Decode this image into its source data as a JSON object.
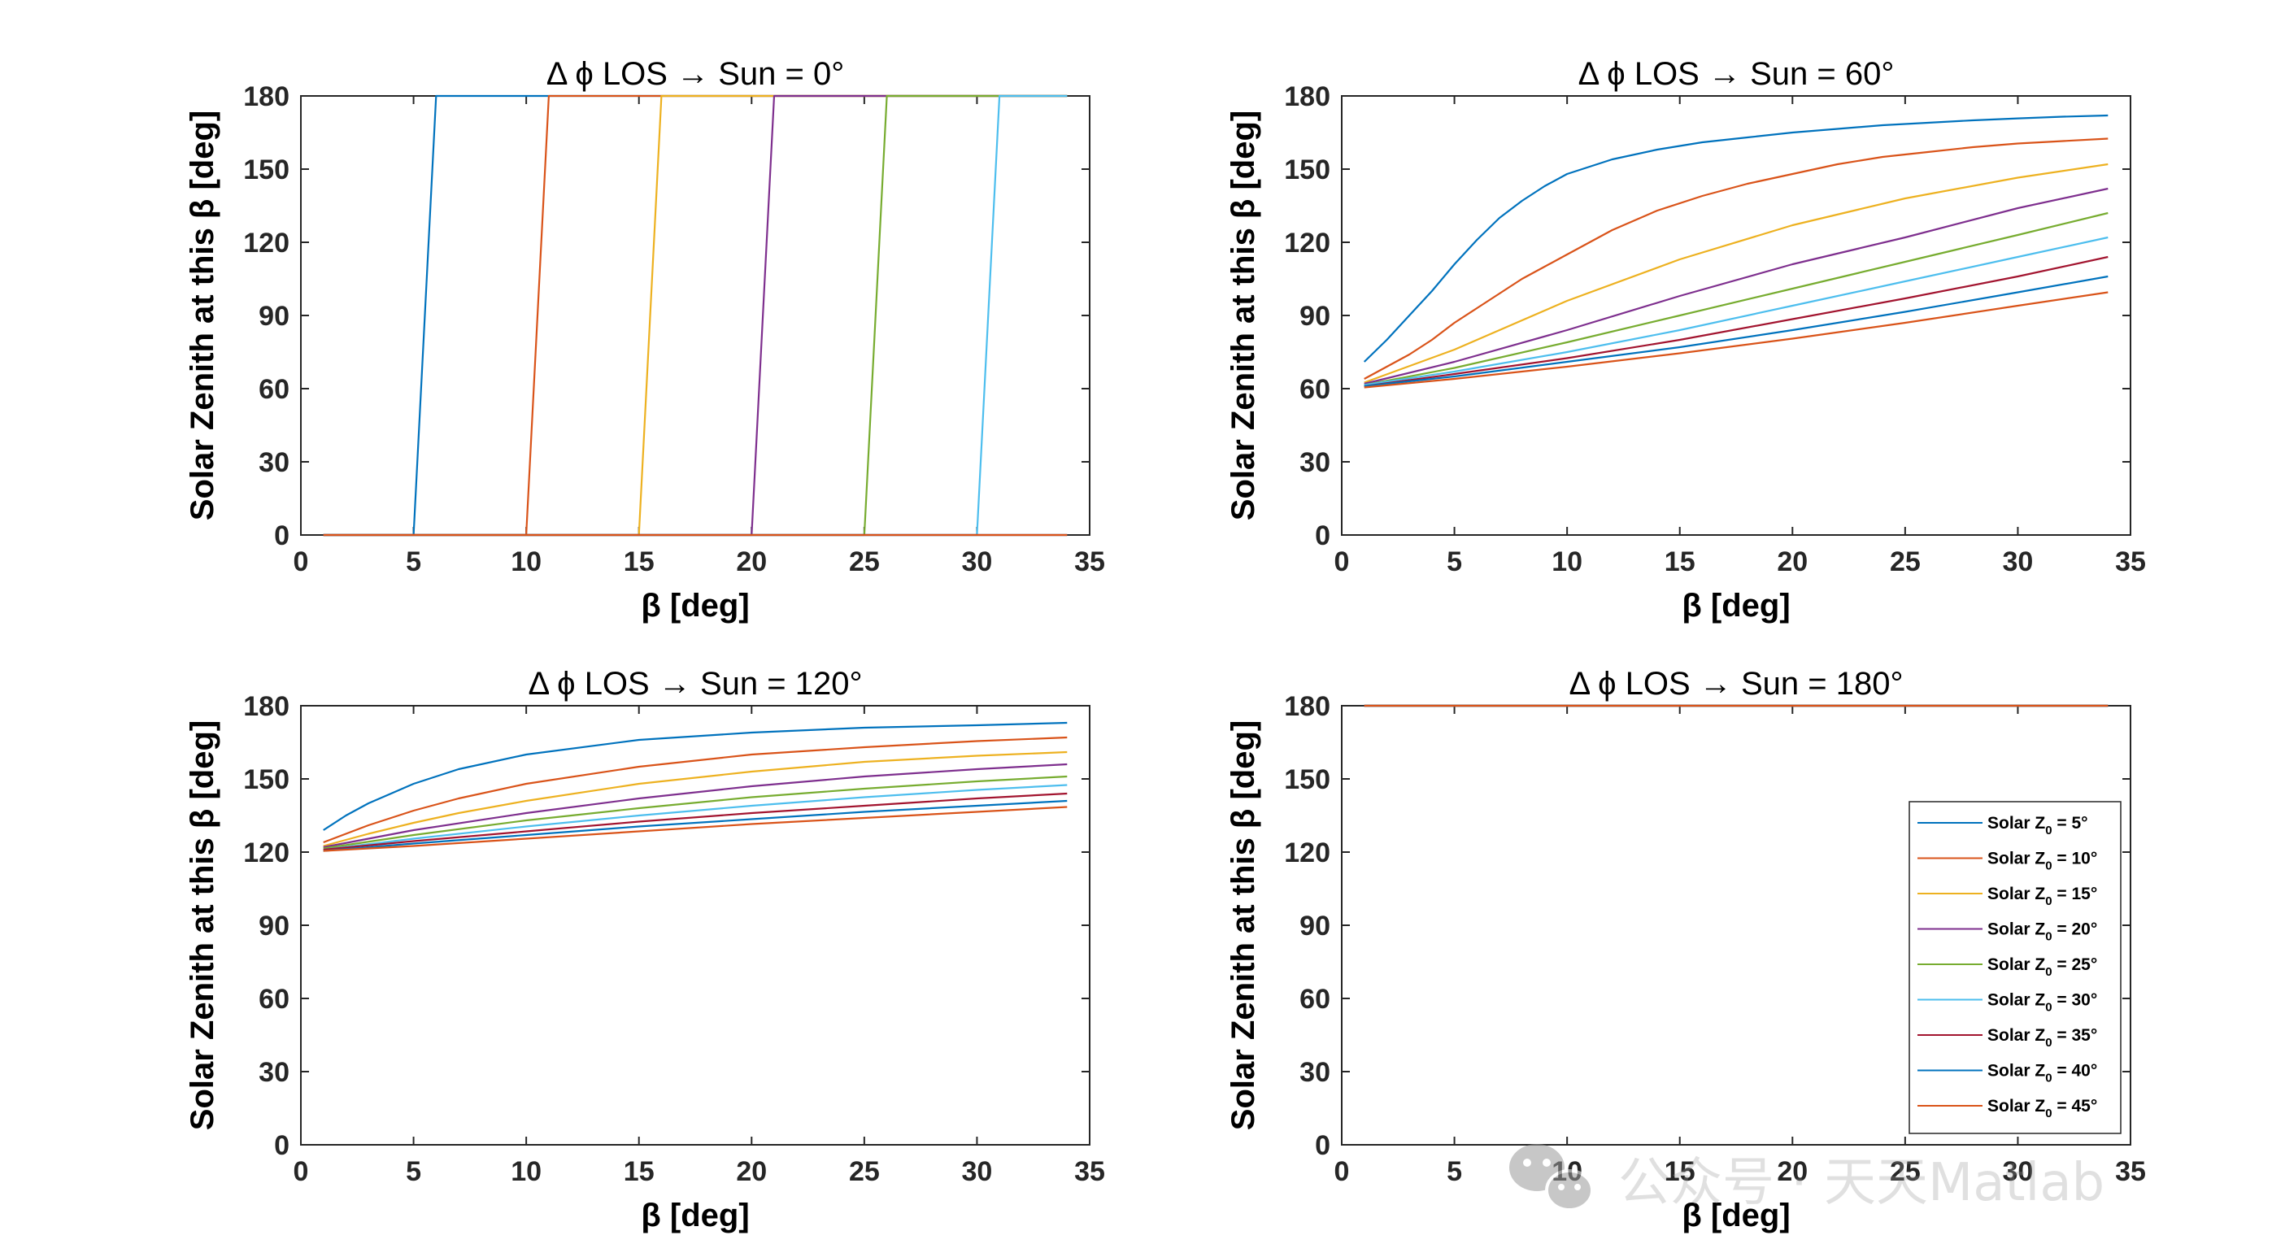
{
  "chart_data": [
    {
      "type": "line",
      "title": "Δ ϕ LOS → Sun = 0°",
      "xlabel": "β [deg]",
      "ylabel": "Solar Zenith at this β [deg]",
      "xlim": [
        0,
        35
      ],
      "ylim": [
        0,
        180
      ],
      "xticks": [
        "0",
        "5",
        "10",
        "15",
        "20",
        "25",
        "30",
        "35"
      ],
      "yticks": [
        "0",
        "30",
        "60",
        "90",
        "120",
        "150",
        "180"
      ],
      "series": [
        {
          "name": "Solar Z0 = 5°",
          "x": [
            1,
            5,
            6,
            34
          ],
          "y": [
            0,
            0,
            180,
            180
          ]
        },
        {
          "name": "Solar Z0 = 10°",
          "x": [
            1,
            10,
            11,
            34
          ],
          "y": [
            0,
            0,
            180,
            180
          ]
        },
        {
          "name": "Solar Z0 = 15°",
          "x": [
            1,
            15,
            16,
            34
          ],
          "y": [
            0,
            0,
            180,
            180
          ]
        },
        {
          "name": "Solar Z0 = 20°",
          "x": [
            1,
            20,
            21,
            34
          ],
          "y": [
            0,
            0,
            180,
            180
          ]
        },
        {
          "name": "Solar Z0 = 25°",
          "x": [
            1,
            25,
            26,
            34
          ],
          "y": [
            0,
            0,
            180,
            180
          ]
        },
        {
          "name": "Solar Z0 = 30°",
          "x": [
            1,
            30,
            31,
            34
          ],
          "y": [
            0,
            0,
            180,
            180
          ]
        },
        {
          "name": "Solar Z0 = 35°",
          "x": [
            1,
            34
          ],
          "y": [
            0,
            0
          ]
        },
        {
          "name": "Solar Z0 = 40°",
          "x": [
            1,
            34
          ],
          "y": [
            0,
            0
          ]
        },
        {
          "name": "Solar Z0 = 45°",
          "x": [
            1,
            34
          ],
          "y": [
            0,
            0
          ]
        }
      ]
    },
    {
      "type": "line",
      "title": "Δ ϕ LOS → Sun = 60°",
      "xlabel": "β [deg]",
      "ylabel": "Solar Zenith at this β [deg]",
      "xlim": [
        0,
        35
      ],
      "ylim": [
        0,
        180
      ],
      "xticks": [
        "0",
        "5",
        "10",
        "15",
        "20",
        "25",
        "30",
        "35"
      ],
      "yticks": [
        "0",
        "30",
        "60",
        "90",
        "120",
        "150",
        "180"
      ],
      "series": [
        {
          "name": "Solar Z0 = 5°",
          "x": [
            1,
            2,
            3,
            4,
            5,
            6,
            7,
            8,
            9,
            10,
            12,
            14,
            16,
            18,
            20,
            22,
            24,
            26,
            28,
            30,
            32,
            34
          ],
          "y": [
            71,
            80,
            90,
            100,
            111,
            121,
            130,
            137,
            143,
            148,
            154,
            158,
            161,
            163,
            165,
            166.5,
            168,
            169,
            170,
            170.8,
            171.5,
            172
          ]
        },
        {
          "name": "Solar Z0 = 10°",
          "x": [
            1,
            2,
            3,
            4,
            5,
            6,
            7,
            8,
            9,
            10,
            12,
            14,
            16,
            18,
            20,
            22,
            24,
            26,
            28,
            30,
            32,
            34
          ],
          "y": [
            64,
            69,
            74,
            80,
            87,
            93,
            99,
            105,
            110,
            115,
            125,
            133,
            139,
            144,
            148,
            152,
            155,
            157,
            159,
            160.5,
            161.5,
            162.5
          ]
        },
        {
          "name": "Solar Z0 = 15°",
          "x": [
            1,
            5,
            10,
            15,
            20,
            25,
            30,
            34
          ],
          "y": [
            62.5,
            76,
            96,
            113,
            127,
            138,
            146.5,
            152
          ]
        },
        {
          "name": "Solar Z0 = 20°",
          "x": [
            1,
            5,
            10,
            15,
            20,
            25,
            30,
            34
          ],
          "y": [
            62,
            71,
            84,
            98,
            111,
            122,
            134,
            142
          ]
        },
        {
          "name": "Solar Z0 = 25°",
          "x": [
            1,
            5,
            10,
            15,
            20,
            25,
            30,
            34
          ],
          "y": [
            61.5,
            68.5,
            79,
            90,
            101,
            112,
            123,
            132
          ]
        },
        {
          "name": "Solar Z0 = 30°",
          "x": [
            1,
            5,
            10,
            15,
            20,
            25,
            30,
            34
          ],
          "y": [
            61.5,
            67,
            75,
            84,
            94,
            104,
            114,
            122
          ]
        },
        {
          "name": "Solar Z0 = 35°",
          "x": [
            1,
            5,
            10,
            15,
            20,
            25,
            30,
            34
          ],
          "y": [
            61,
            66,
            72.5,
            80,
            88.5,
            97,
            106,
            114
          ]
        },
        {
          "name": "Solar Z0 = 40°",
          "x": [
            1,
            5,
            10,
            15,
            20,
            25,
            30,
            34
          ],
          "y": [
            61,
            65,
            71,
            77,
            84,
            91.5,
            99.5,
            106
          ]
        },
        {
          "name": "Solar Z0 = 45°",
          "x": [
            1,
            5,
            10,
            15,
            20,
            25,
            30,
            34
          ],
          "y": [
            60.5,
            64,
            69,
            74.5,
            80.5,
            87,
            94,
            99.5
          ]
        }
      ]
    },
    {
      "type": "line",
      "title": "Δ ϕ LOS → Sun = 120°",
      "xlabel": "β [deg]",
      "ylabel": "Solar Zenith at this β [deg]",
      "xlim": [
        0,
        35
      ],
      "ylim": [
        0,
        180
      ],
      "xticks": [
        "0",
        "5",
        "10",
        "15",
        "20",
        "25",
        "30",
        "35"
      ],
      "yticks": [
        "0",
        "30",
        "60",
        "90",
        "120",
        "150",
        "180"
      ],
      "series": [
        {
          "name": "Solar Z0 = 5°",
          "x": [
            1,
            2,
            3,
            4,
            5,
            7,
            10,
            15,
            20,
            25,
            30,
            34
          ],
          "y": [
            129,
            135,
            140,
            144,
            148,
            154,
            160,
            166,
            169,
            171,
            172,
            173
          ]
        },
        {
          "name": "Solar Z0 = 10°",
          "x": [
            1,
            3,
            5,
            7,
            10,
            15,
            20,
            25,
            30,
            34
          ],
          "y": [
            124,
            131,
            137,
            142,
            148,
            155,
            160,
            163,
            165.5,
            167
          ]
        },
        {
          "name": "Solar Z0 = 15°",
          "x": [
            1,
            3,
            5,
            7,
            10,
            15,
            20,
            25,
            30,
            34
          ],
          "y": [
            122.5,
            127.5,
            132,
            136,
            141,
            148,
            153,
            157,
            159.5,
            161
          ]
        },
        {
          "name": "Solar Z0 = 20°",
          "x": [
            1,
            5,
            10,
            15,
            20,
            25,
            30,
            34
          ],
          "y": [
            122,
            129,
            136,
            142,
            147,
            151,
            154,
            156
          ]
        },
        {
          "name": "Solar Z0 = 25°",
          "x": [
            1,
            5,
            10,
            15,
            20,
            25,
            30,
            34
          ],
          "y": [
            121.5,
            127,
            133,
            138,
            142.5,
            146,
            149,
            151
          ]
        },
        {
          "name": "Solar Z0 = 30°",
          "x": [
            1,
            5,
            10,
            15,
            20,
            25,
            30,
            34
          ],
          "y": [
            121,
            125.5,
            130.5,
            135,
            139,
            142.5,
            145.5,
            147.5
          ]
        },
        {
          "name": "Solar Z0 = 35°",
          "x": [
            1,
            5,
            10,
            15,
            20,
            25,
            30,
            34
          ],
          "y": [
            121,
            124.5,
            128.5,
            132.5,
            136,
            139,
            142,
            144
          ]
        },
        {
          "name": "Solar Z0 = 40°",
          "x": [
            1,
            5,
            10,
            15,
            20,
            25,
            30,
            34
          ],
          "y": [
            120.5,
            123.5,
            127,
            130.5,
            133.5,
            136.5,
            139,
            141
          ]
        },
        {
          "name": "Solar Z0 = 45°",
          "x": [
            1,
            5,
            10,
            15,
            20,
            25,
            30,
            34
          ],
          "y": [
            120.5,
            122.5,
            125.5,
            128.5,
            131.5,
            134,
            136.5,
            138.5
          ]
        }
      ]
    },
    {
      "type": "line",
      "title": "Δ ϕ LOS → Sun = 180°",
      "xlabel": "β [deg]",
      "ylabel": "Solar Zenith at this β [deg]",
      "xlim": [
        0,
        35
      ],
      "ylim": [
        0,
        180
      ],
      "xticks": [
        "0",
        "5",
        "10",
        "15",
        "20",
        "25",
        "30",
        "35"
      ],
      "yticks": [
        "0",
        "30",
        "60",
        "90",
        "120",
        "150",
        "180"
      ],
      "legend_position": "lower-right",
      "series": [
        {
          "name": "Solar Z0 = 5°",
          "x": [
            1,
            34
          ],
          "y": [
            180,
            180
          ]
        },
        {
          "name": "Solar Z0 = 10°",
          "x": [
            1,
            34
          ],
          "y": [
            180,
            180
          ]
        },
        {
          "name": "Solar Z0 = 15°",
          "x": [
            1,
            34
          ],
          "y": [
            180,
            180
          ]
        },
        {
          "name": "Solar Z0 = 20°",
          "x": [
            1,
            34
          ],
          "y": [
            180,
            180
          ]
        },
        {
          "name": "Solar Z0 = 25°",
          "x": [
            1,
            34
          ],
          "y": [
            180,
            180
          ]
        },
        {
          "name": "Solar Z0 = 30°",
          "x": [
            1,
            34
          ],
          "y": [
            180,
            180
          ]
        },
        {
          "name": "Solar Z0 = 35°",
          "x": [
            1,
            34
          ],
          "y": [
            180,
            180
          ]
        },
        {
          "name": "Solar Z0 = 40°",
          "x": [
            1,
            34
          ],
          "y": [
            180,
            180
          ]
        },
        {
          "name": "Solar Z0 = 45°",
          "x": [
            1,
            34
          ],
          "y": [
            180,
            180
          ]
        }
      ]
    }
  ],
  "legend": {
    "entries": [
      "Solar Z0 = 5°",
      "Solar Z0 = 10°",
      "Solar Z0 = 15°",
      "Solar Z0 = 20°",
      "Solar Z0 = 25°",
      "Solar Z0 = 30°",
      "Solar Z0 = 35°",
      "Solar Z0 = 40°",
      "Solar Z0 = 45°"
    ],
    "labels": [
      {
        "pre": "Solar Z",
        "sub": "0",
        "post": " = 5°"
      },
      {
        "pre": "Solar Z",
        "sub": "0",
        "post": " = 10°"
      },
      {
        "pre": "Solar Z",
        "sub": "0",
        "post": " = 15°"
      },
      {
        "pre": "Solar Z",
        "sub": "0",
        "post": " = 20°"
      },
      {
        "pre": "Solar Z",
        "sub": "0",
        "post": " = 25°"
      },
      {
        "pre": "Solar Z",
        "sub": "0",
        "post": " = 30°"
      },
      {
        "pre": "Solar Z",
        "sub": "0",
        "post": " = 35°"
      },
      {
        "pre": "Solar Z",
        "sub": "0",
        "post": " = 40°"
      },
      {
        "pre": "Solar Z",
        "sub": "0",
        "post": " = 45°"
      }
    ]
  },
  "colors": [
    "#0072BD",
    "#D95319",
    "#EDB120",
    "#7E2F8E",
    "#77AC30",
    "#4DBEEE",
    "#A2142F",
    "#0072BD",
    "#D95319"
  ],
  "watermark": {
    "text": "公众号 · 天天Matlab",
    "icon": "wechat-icon"
  }
}
